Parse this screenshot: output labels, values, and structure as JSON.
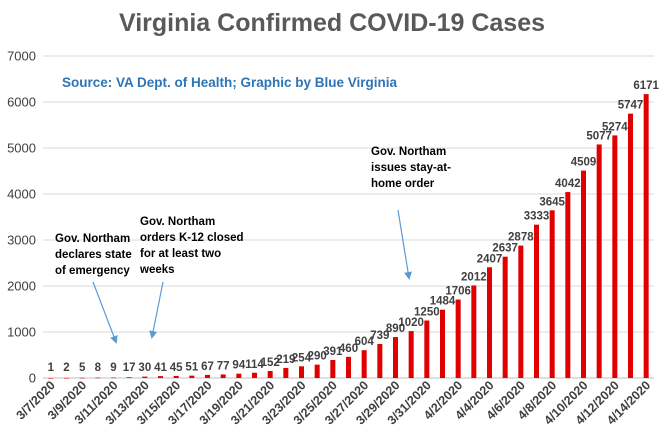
{
  "chart_data": {
    "type": "bar",
    "title": "Virginia Confirmed COVID-19 Cases",
    "subtitle": "Source: VA Dept. of Health; Graphic by Blue Virginia",
    "xlabel": "",
    "ylabel": "",
    "ylim": [
      0,
      7000
    ],
    "yticks": [
      0,
      1000,
      2000,
      3000,
      4000,
      5000,
      6000,
      7000
    ],
    "grid": true,
    "bar_color": "#e00000",
    "categories": [
      "3/7/2020",
      "3/8/2020",
      "3/9/2020",
      "3/10/2020",
      "3/11/2020",
      "3/12/2020",
      "3/13/2020",
      "3/14/2020",
      "3/15/2020",
      "3/16/2020",
      "3/17/2020",
      "3/18/2020",
      "3/19/2020",
      "3/20/2020",
      "3/21/2020",
      "3/22/2020",
      "3/23/2020",
      "3/24/2020",
      "3/25/2020",
      "3/26/2020",
      "3/27/2020",
      "3/28/2020",
      "3/29/2020",
      "3/30/2020",
      "3/31/2020",
      "4/1/2020",
      "4/2/2020",
      "4/3/2020",
      "4/4/2020",
      "4/5/2020",
      "4/6/2020",
      "4/7/2020",
      "4/8/2020",
      "4/9/2020",
      "4/10/2020",
      "4/11/2020",
      "4/12/2020",
      "4/13/2020",
      "4/14/2020"
    ],
    "xtick_labels": [
      "3/7/2020",
      "3/9/2020",
      "3/11/2020",
      "3/13/2020",
      "3/15/2020",
      "3/17/2020",
      "3/19/2020",
      "3/21/2020",
      "3/23/2020",
      "3/25/2020",
      "3/27/2020",
      "3/29/2020",
      "3/31/2020",
      "4/2/2020",
      "4/4/2020",
      "4/6/2020",
      "4/8/2020",
      "4/10/2020",
      "4/12/2020",
      "4/14/2020"
    ],
    "values": [
      1,
      2,
      5,
      8,
      9,
      17,
      30,
      41,
      45,
      51,
      67,
      77,
      94,
      114,
      152,
      219,
      254,
      290,
      391,
      460,
      604,
      739,
      890,
      1020,
      1250,
      1484,
      1706,
      2012,
      2407,
      2637,
      2878,
      3333,
      3645,
      4042,
      4509,
      5077,
      5274,
      5747,
      6171
    ],
    "annotations": [
      {
        "lines": [
          "Gov. Northam",
          "declares state",
          "of emergency"
        ],
        "points_to": "3/11/2020"
      },
      {
        "lines": [
          "Gov. Northam",
          "orders K-12 closed",
          "for at least two",
          "weeks"
        ],
        "points_to": "3/13/2020"
      },
      {
        "lines": [
          "Gov. Northam",
          "issues stay-at-",
          "home order"
        ],
        "points_to": "3/30/2020"
      }
    ],
    "annotation_arrow_color": "#5b9bd5"
  }
}
